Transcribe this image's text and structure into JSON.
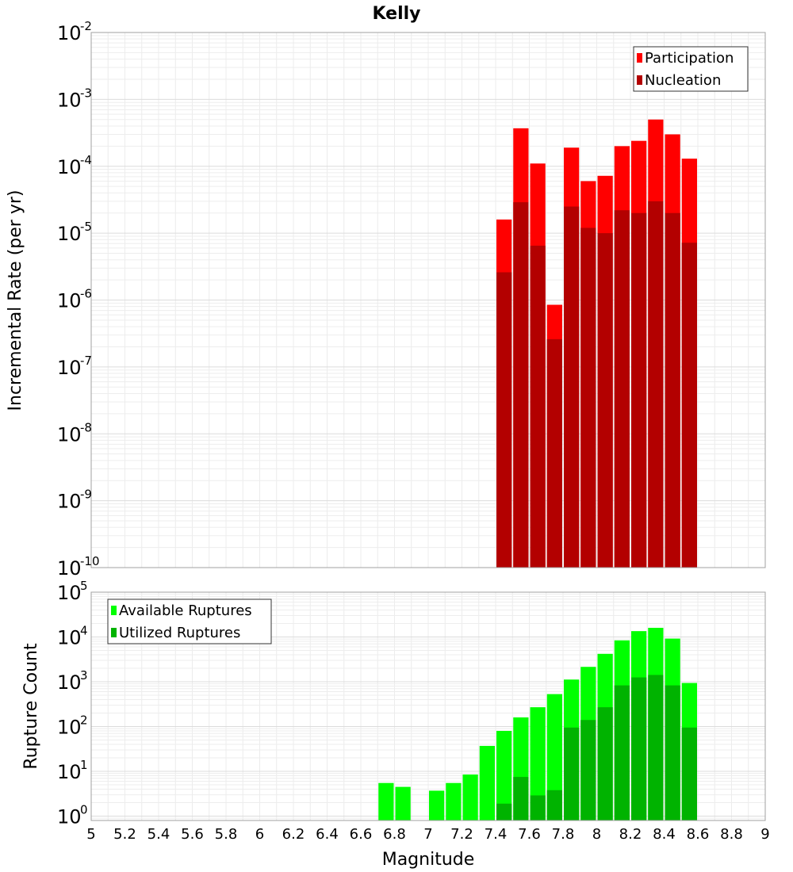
{
  "chart_data": [
    {
      "type": "bar",
      "title": "Kelly",
      "xlabel": "",
      "ylabel": "Incremental Rate (per yr)",
      "yscale": "log",
      "ylim": [
        1e-10,
        0.01
      ],
      "ytick_exponents": [
        -2,
        -3,
        -4,
        -5,
        -6,
        -7,
        -8,
        -9,
        -10
      ],
      "xlim": [
        5,
        9
      ],
      "bin_width": 0.1,
      "grid": true,
      "legend_position": "top-right",
      "categories": [
        7.45,
        7.55,
        7.65,
        7.75,
        7.85,
        7.95,
        8.05,
        8.15,
        8.25,
        8.35,
        8.45,
        8.55
      ],
      "series": [
        {
          "name": "Participation",
          "color": "#ff0000",
          "values": [
            1.6e-05,
            0.00037,
            0.00011,
            8.5e-07,
            0.00019,
            6e-05,
            7.2e-05,
            0.0002,
            0.00024,
            0.0005,
            0.0003,
            0.00013
          ]
        },
        {
          "name": "Nucleation",
          "color": "#b30000",
          "values": [
            2.6e-06,
            2.9e-05,
            6.5e-06,
            2.6e-07,
            2.5e-05,
            1.2e-05,
            1e-05,
            2.2e-05,
            2e-05,
            3e-05,
            2e-05,
            7.2e-06
          ]
        }
      ]
    },
    {
      "type": "bar",
      "title": "",
      "xlabel": "Magnitude",
      "ylabel": "Rupture Count",
      "yscale": "log",
      "ylim": [
        0.8,
        100000
      ],
      "ytick_exponents": [
        5,
        4,
        3,
        2,
        1,
        0
      ],
      "xlim": [
        5,
        9
      ],
      "xticks": [
        "5",
        "5.2",
        "5.4",
        "5.6",
        "5.8",
        "6",
        "6.2",
        "6.4",
        "6.6",
        "6.8",
        "7",
        "7.2",
        "7.4",
        "7.6",
        "7.8",
        "8",
        "8.2",
        "8.4",
        "8.6",
        "8.8",
        "9"
      ],
      "bin_width": 0.1,
      "grid": true,
      "legend_position": "top-left",
      "categories": [
        6.75,
        6.85,
        6.95,
        7.05,
        7.15,
        7.25,
        7.35,
        7.45,
        7.55,
        7.65,
        7.75,
        7.85,
        7.95,
        8.05,
        8.15,
        8.25,
        8.35,
        8.45,
        8.55
      ],
      "series": [
        {
          "name": "Available Ruptures",
          "color": "#00ff00",
          "values": [
            5.5,
            4.5,
            null,
            3.7,
            5.5,
            8.5,
            37,
            80,
            160,
            270,
            530,
            1120,
            2150,
            4200,
            8400,
            13500,
            16000,
            9200,
            940
          ]
        },
        {
          "name": "Utilized Ruptures",
          "color": "#00b300",
          "values": [
            null,
            null,
            null,
            null,
            null,
            null,
            null,
            1.9,
            7.5,
            2.9,
            3.8,
            95,
            140,
            270,
            830,
            1250,
            1420,
            830,
            95
          ]
        }
      ]
    }
  ]
}
